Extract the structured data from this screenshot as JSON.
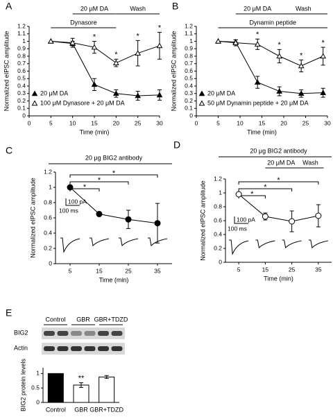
{
  "chart_data": [
    {
      "type": "line",
      "panel": "A",
      "x_label": "Time (min)",
      "y_label": "Normalized eIPSC amplitude",
      "x": [
        5,
        10,
        15,
        20,
        25,
        30
      ],
      "xlim": [
        0,
        30
      ],
      "xticks": [
        0,
        5,
        10,
        15,
        20,
        25,
        30
      ],
      "ylim": [
        0,
        1.2
      ],
      "yticks": [
        0,
        0.1,
        0.2,
        0.3,
        0.4,
        0.5,
        0.6,
        0.7,
        0.8,
        0.9,
        1,
        1.1,
        1.2
      ],
      "series": [
        {
          "name": "20 μM DA",
          "color": "#000",
          "marker": "triangle",
          "filled": true,
          "values": [
            1,
            0.97,
            0.42,
            0.3,
            0.27,
            0.28
          ],
          "errors": [
            0,
            0.03,
            0.08,
            0.05,
            0.06,
            0.07
          ]
        },
        {
          "name": "100 μM Dynasore + 20 μM DA",
          "color": "#000",
          "marker": "triangle",
          "filled": false,
          "values": [
            1,
            0.98,
            0.92,
            0.71,
            0.84,
            0.94
          ],
          "errors": [
            0,
            0.06,
            0.08,
            0.05,
            0.17,
            0.18
          ],
          "significance": [
            null,
            null,
            "*",
            "*",
            "*",
            "*"
          ]
        }
      ],
      "spans": [
        {
          "label": "20 μM DA",
          "from": 10,
          "to": 20
        },
        {
          "label": "Wash",
          "from": 20,
          "to": 30
        },
        {
          "label": "Dynasore",
          "from": 5,
          "to": 20
        }
      ]
    },
    {
      "type": "line",
      "panel": "B",
      "x_label": "Time (min)",
      "y_label": "Normalized eIPSC amplitude",
      "x": [
        5,
        9,
        14,
        19,
        24,
        29
      ],
      "xlim": [
        0,
        30
      ],
      "xticks": [
        0,
        5,
        10,
        15,
        20,
        25,
        30
      ],
      "ylim": [
        0,
        1.2
      ],
      "yticks": [
        0,
        0.1,
        0.2,
        0.3,
        0.4,
        0.5,
        0.6,
        0.7,
        0.8,
        0.9,
        1,
        1.1,
        1.2
      ],
      "series": [
        {
          "name": "20 μM DA",
          "color": "#000",
          "marker": "triangle",
          "filled": true,
          "values": [
            1,
            0.99,
            0.45,
            0.33,
            0.3,
            0.31
          ],
          "errors": [
            0,
            0.03,
            0.08,
            0.06,
            0.05,
            0.06
          ]
        },
        {
          "name": "50 μM Dynamin peptide + 20 μM DA",
          "color": "#000",
          "marker": "triangle",
          "filled": false,
          "values": [
            1,
            0.98,
            0.96,
            0.8,
            0.67,
            0.8
          ],
          "errors": [
            0,
            0.04,
            0.07,
            0.09,
            0.08,
            0.12
          ],
          "significance": [
            null,
            null,
            "*",
            "*",
            "*",
            "*"
          ]
        }
      ],
      "spans": [
        {
          "label": "20 μM DA",
          "from": 9,
          "to": 19
        },
        {
          "label": "Wash",
          "from": 19,
          "to": 30
        },
        {
          "label": "Dynamin peptide",
          "from": 5,
          "to": 30
        }
      ]
    },
    {
      "type": "line",
      "panel": "C",
      "header": "20 μg BIG2 antibody",
      "x_label": "Time (min)",
      "y_label": "Normalized eIPSC amplitude",
      "x": [
        5,
        15,
        25,
        35
      ],
      "xlim": [
        0,
        40
      ],
      "xticks": [
        5,
        15,
        25,
        35
      ],
      "ylim": [
        0,
        1.2
      ],
      "yticks": [
        0,
        0.2,
        0.4,
        0.6,
        0.8,
        1,
        1.2
      ],
      "series": [
        {
          "name": "20 μg BIG2 antibody",
          "color": "#000",
          "marker": "circle",
          "filled": true,
          "values": [
            1,
            0.65,
            0.58,
            0.53
          ],
          "errors": [
            0,
            0.03,
            0.12,
            0.26
          ]
        }
      ],
      "comparisons": [
        {
          "from": 5,
          "to": 15,
          "label": "*"
        },
        {
          "from": 5,
          "to": 25,
          "label": "*"
        },
        {
          "from": 5,
          "to": 35,
          "label": "*"
        }
      ],
      "scale_bar": {
        "amplitude": "100 pA",
        "time": "100 ms"
      }
    },
    {
      "type": "line",
      "panel": "D",
      "header": "20 μg BIG2 antibody",
      "x_label": "Time (min)",
      "y_label": "Normalized eIPSC amplitude",
      "x": [
        5,
        15,
        25,
        35
      ],
      "xlim": [
        0,
        40
      ],
      "xticks": [
        5,
        15,
        25,
        35
      ],
      "ylim": [
        0,
        1.2
      ],
      "yticks": [
        0,
        0.2,
        0.4,
        0.6,
        0.8,
        1,
        1.2
      ],
      "series": [
        {
          "name": "20 μg BIG2 antibody",
          "color": "#000",
          "marker": "circle",
          "filled": false,
          "values": [
            0.98,
            0.66,
            0.59,
            0.67
          ],
          "errors": [
            0.02,
            0.05,
            0.15,
            0.16
          ]
        }
      ],
      "spans": [
        {
          "label": "20 μM DA",
          "from": 15,
          "to": 27
        },
        {
          "label": "Wash",
          "from": 27,
          "to": 37
        }
      ],
      "comparisons": [
        {
          "from": 5,
          "to": 15,
          "label": "*"
        },
        {
          "from": 5,
          "to": 25,
          "label": "*"
        },
        {
          "from": 5,
          "to": 35,
          "label": "*"
        }
      ],
      "scale_bar": {
        "amplitude": "100 pA",
        "time": "100 ms"
      }
    },
    {
      "type": "bar",
      "panel": "E",
      "y_label": "BIG2 protein levels",
      "categories": [
        "Control",
        "GBR",
        "GBR+TDZD"
      ],
      "values": [
        1,
        0.6,
        0.88
      ],
      "errors": [
        0,
        0.08,
        0.05
      ],
      "colors": [
        "#000",
        "#fff",
        "#fff"
      ],
      "significance": [
        null,
        "**",
        null
      ],
      "ylim": [
        0,
        1.2
      ],
      "yticks": [
        0,
        0.5,
        1
      ],
      "blot": {
        "lanes": [
          "Control",
          "GBR",
          "GBR+TDZD"
        ],
        "rows": [
          "BIG2",
          "Actin"
        ]
      }
    }
  ]
}
